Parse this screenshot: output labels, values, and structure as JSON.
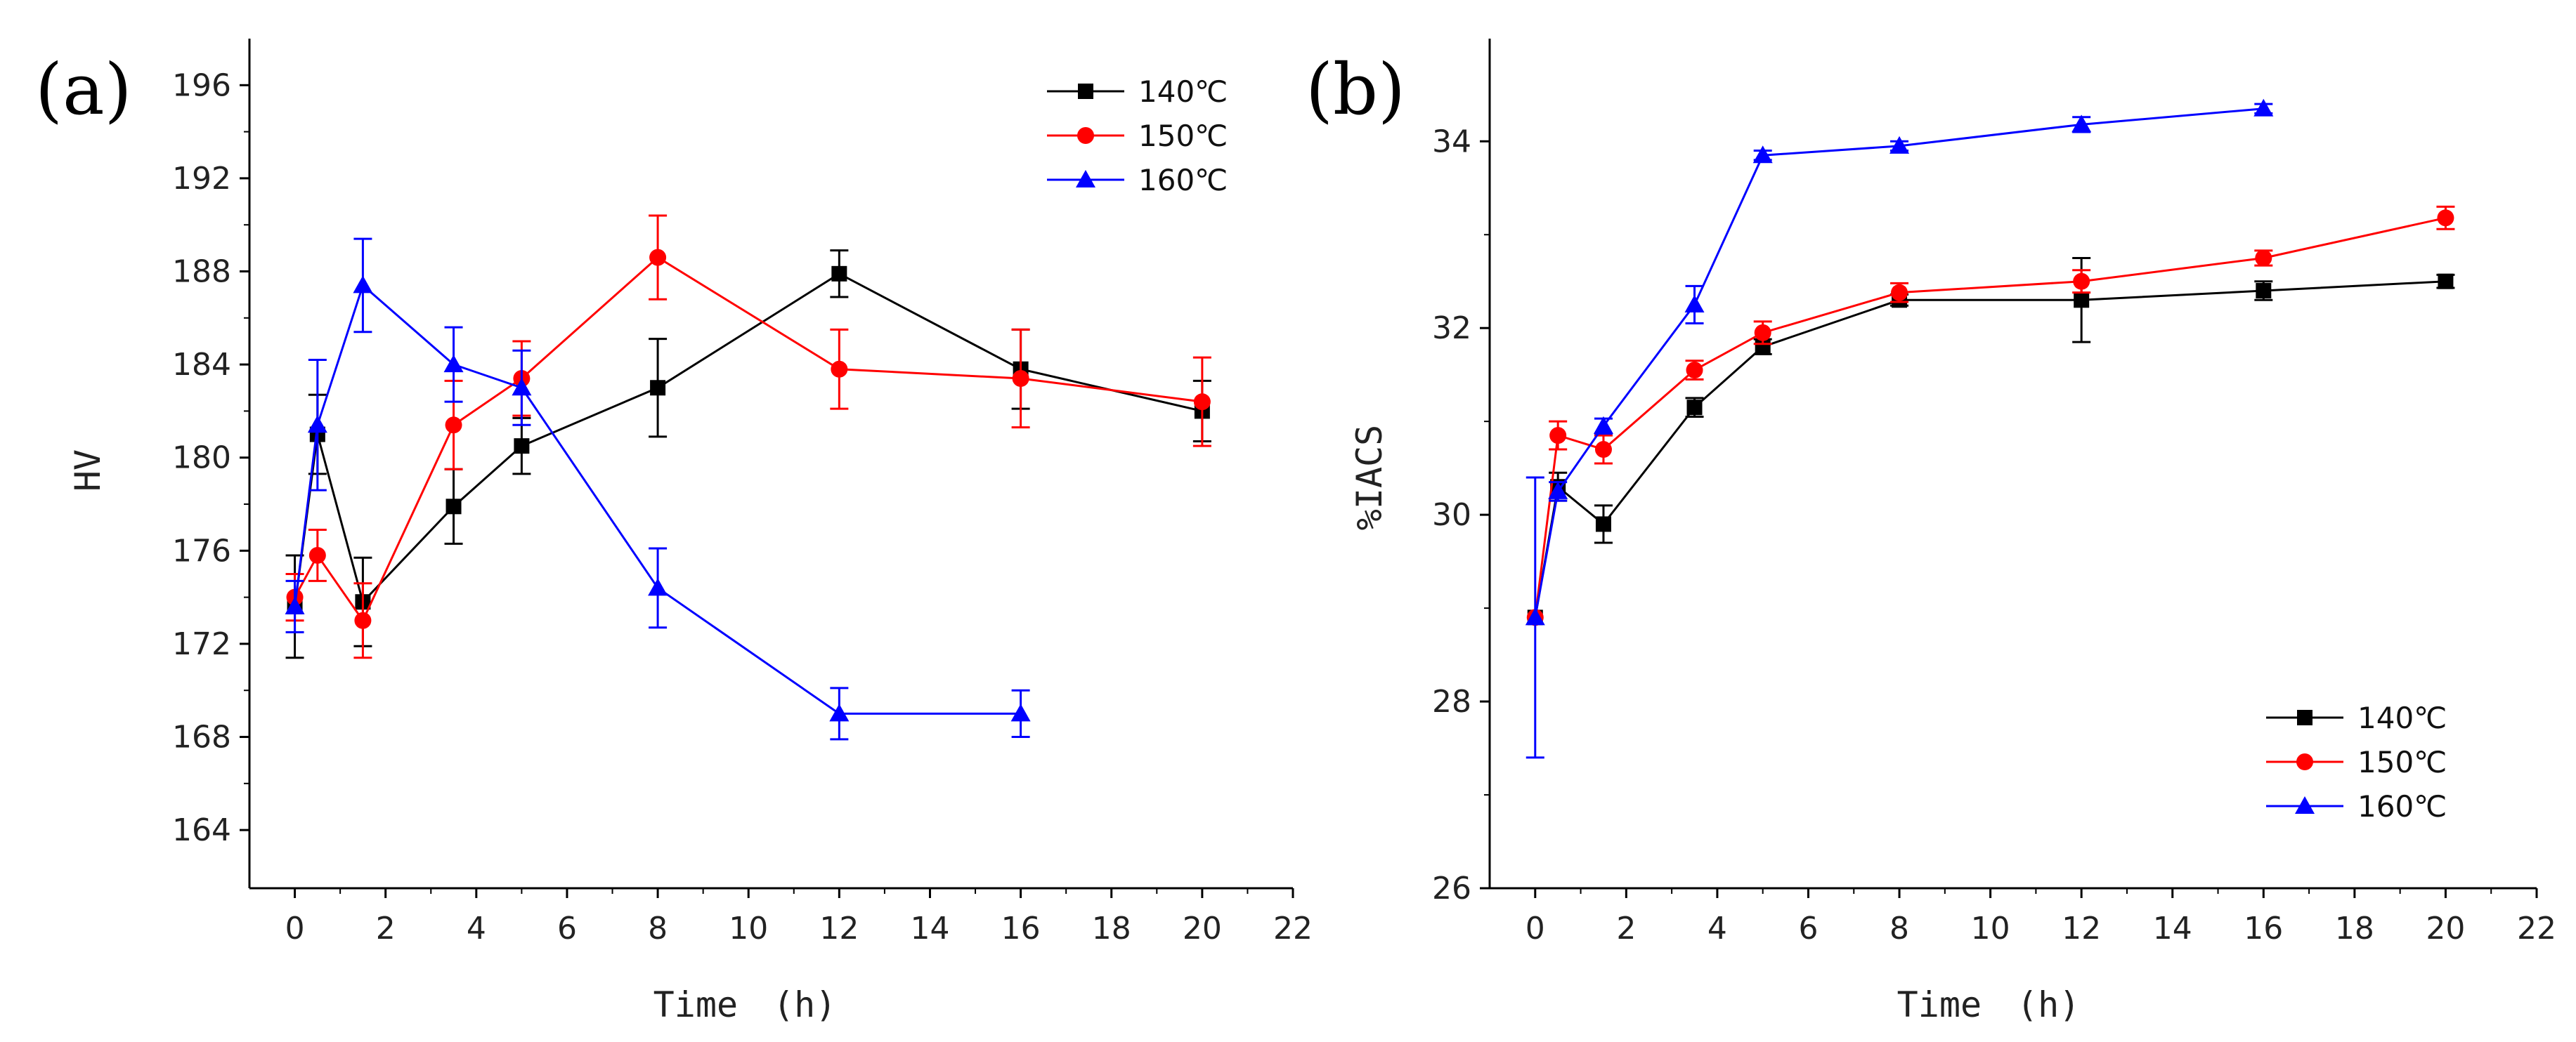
{
  "chart_data": [
    {
      "type": "line",
      "panel_label": "(a)",
      "xlabel": "Time　(h)",
      "ylabel": "HV",
      "xlim": [
        -1,
        22
      ],
      "ylim": [
        161.5,
        198
      ],
      "xticks": [
        0,
        2,
        4,
        6,
        8,
        10,
        12,
        14,
        16,
        18,
        20,
        22
      ],
      "yticks": [
        164,
        168,
        172,
        176,
        180,
        184,
        188,
        192,
        196
      ],
      "legend_position": "top-right",
      "series": [
        {
          "name": "140℃",
          "color": "#000000",
          "marker": "square",
          "x": [
            0,
            0.5,
            1.5,
            3.5,
            5,
            8,
            12,
            16,
            20
          ],
          "y": [
            173.6,
            181.0,
            173.8,
            177.9,
            180.5,
            183.0,
            187.9,
            183.8,
            182.0
          ],
          "err": [
            2.2,
            1.7,
            1.9,
            1.6,
            1.2,
            2.1,
            1.0,
            1.7,
            1.3
          ]
        },
        {
          "name": "150℃",
          "color": "#ff0000",
          "marker": "circle",
          "x": [
            0,
            0.5,
            1.5,
            3.5,
            5,
            8,
            12,
            16,
            20
          ],
          "y": [
            174.0,
            175.8,
            173.0,
            181.4,
            183.4,
            188.6,
            183.8,
            183.4,
            182.4
          ],
          "err": [
            1.0,
            1.1,
            1.6,
            1.9,
            1.6,
            1.8,
            1.7,
            2.1,
            1.9
          ]
        },
        {
          "name": "160℃",
          "color": "#0000ff",
          "marker": "triangle",
          "x": [
            0,
            0.5,
            1.5,
            3.5,
            5,
            8,
            12,
            16
          ],
          "y": [
            173.6,
            181.4,
            187.4,
            184.0,
            183.0,
            174.4,
            169.0,
            169.0
          ],
          "err": [
            1.1,
            2.8,
            2.0,
            1.6,
            1.6,
            1.7,
            1.1,
            1.0
          ]
        }
      ]
    },
    {
      "type": "line",
      "panel_label": "(b)",
      "xlabel": "Time　(h)",
      "ylabel": "%IACS",
      "xlim": [
        -1,
        22
      ],
      "ylim": [
        26,
        35.1
      ],
      "xticks": [
        0,
        2,
        4,
        6,
        8,
        10,
        12,
        14,
        16,
        18,
        20,
        22
      ],
      "yticks": [
        26,
        28,
        30,
        32,
        34
      ],
      "legend_position": "bottom-right",
      "series": [
        {
          "name": "140℃",
          "color": "#000000",
          "marker": "square",
          "x": [
            0,
            0.5,
            1.5,
            3.5,
            5,
            8,
            12,
            16,
            20
          ],
          "y": [
            28.9,
            30.3,
            29.9,
            31.15,
            31.8,
            32.3,
            32.3,
            32.4,
            32.5
          ],
          "err": [
            0,
            0.15,
            0.2,
            0.1,
            0.08,
            0.06,
            0.45,
            0.1,
            0.07
          ]
        },
        {
          "name": "150℃",
          "color": "#ff0000",
          "marker": "circle",
          "x": [
            0,
            0.5,
            1.5,
            3.5,
            5,
            8,
            12,
            16,
            20
          ],
          "y": [
            28.9,
            30.85,
            30.7,
            31.55,
            31.95,
            32.38,
            32.5,
            32.75,
            33.18
          ],
          "err": [
            0,
            0.15,
            0.15,
            0.1,
            0.12,
            0.1,
            0.12,
            0.08,
            0.12
          ]
        },
        {
          "name": "160℃",
          "color": "#0000ff",
          "marker": "triangle",
          "x": [
            0,
            0.5,
            1.5,
            3.5,
            5,
            8,
            12,
            16
          ],
          "y": [
            28.9,
            30.25,
            30.95,
            32.25,
            33.85,
            33.95,
            34.18,
            34.35
          ],
          "err": [
            1.5,
            0.1,
            0.08,
            0.2,
            0.05,
            0.05,
            0.08,
            0.05
          ]
        }
      ]
    }
  ]
}
